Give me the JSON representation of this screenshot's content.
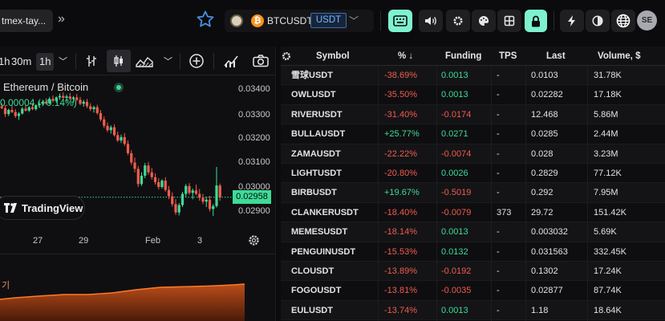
{
  "topbar": {
    "workspace_label": "tmex-tay...",
    "expand_icon": "double-chevron-right",
    "favorite_icon": "star-outline",
    "pair": "BTCUSDT",
    "quote": "USDT",
    "buttons": [
      "keyboard-icon",
      "volume-icon",
      "gear-icon",
      "palette-icon",
      "grid-icon",
      "lock-icon",
      "lightning-icon",
      "contrast-icon",
      "globe-icon"
    ],
    "avatar_initials": "SE",
    "accent_color": "#7ef2cf"
  },
  "chart": {
    "intervals": [
      "1h",
      "30m",
      "1h"
    ],
    "selected_interval": "1h",
    "symbol_title": "Ethereum / Bitcoin",
    "change_text": "0.00004 (+0.14%)",
    "price_ticks": [
      "0.03400",
      "0.03300",
      "0.03200",
      "0.03100",
      "0.03000",
      "0.02900"
    ],
    "last_price": "0.02958",
    "x_ticks": [
      "27",
      "29",
      "Feb",
      "3"
    ],
    "branding": "TradingView",
    "indicator_label": "기",
    "up_color": "#3ddc97",
    "down_color": "#f05c4e",
    "candles": [
      [
        0.03346,
        0.03354,
        0.03326,
        0.0333
      ],
      [
        0.0333,
        0.03342,
        0.03318,
        0.03322
      ],
      [
        0.03322,
        0.03334,
        0.03286,
        0.03298
      ],
      [
        0.03298,
        0.0332,
        0.0329,
        0.03315
      ],
      [
        0.03315,
        0.03332,
        0.03302,
        0.03306
      ],
      [
        0.03306,
        0.03318,
        0.03282,
        0.0329
      ],
      [
        0.0329,
        0.03306,
        0.03274,
        0.033
      ],
      [
        0.033,
        0.03326,
        0.03296,
        0.0332
      ],
      [
        0.0332,
        0.03336,
        0.03308,
        0.03312
      ],
      [
        0.03312,
        0.0333,
        0.03306,
        0.03326
      ],
      [
        0.03326,
        0.03342,
        0.03314,
        0.03318
      ],
      [
        0.03318,
        0.03338,
        0.03312,
        0.03334
      ],
      [
        0.03334,
        0.0335,
        0.03324,
        0.0334
      ],
      [
        0.0334,
        0.03356,
        0.0333,
        0.03348
      ],
      [
        0.03348,
        0.03362,
        0.03336,
        0.03342
      ],
      [
        0.03342,
        0.03368,
        0.03338,
        0.0336
      ],
      [
        0.0336,
        0.03374,
        0.03346,
        0.03352
      ],
      [
        0.03352,
        0.0337,
        0.03344,
        0.03366
      ],
      [
        0.03366,
        0.03382,
        0.03356,
        0.03372
      ],
      [
        0.03372,
        0.03386,
        0.03358,
        0.03364
      ],
      [
        0.03364,
        0.03378,
        0.0335,
        0.0337
      ],
      [
        0.0337,
        0.03384,
        0.03356,
        0.0336
      ],
      [
        0.0336,
        0.03372,
        0.03344,
        0.03366
      ],
      [
        0.03366,
        0.0338,
        0.0335,
        0.03356
      ],
      [
        0.03356,
        0.03368,
        0.03334,
        0.0334
      ],
      [
        0.0334,
        0.03356,
        0.03328,
        0.03348
      ],
      [
        0.03348,
        0.0336,
        0.03322,
        0.0333
      ],
      [
        0.0333,
        0.03342,
        0.0331,
        0.03318
      ],
      [
        0.03318,
        0.03332,
        0.03304,
        0.03326
      ],
      [
        0.03326,
        0.03336,
        0.03296,
        0.03302
      ],
      [
        0.03302,
        0.03314,
        0.03268,
        0.03276
      ],
      [
        0.03276,
        0.03288,
        0.0324,
        0.0325
      ],
      [
        0.0325,
        0.03264,
        0.03224,
        0.03232
      ],
      [
        0.03232,
        0.03252,
        0.03218,
        0.03244
      ],
      [
        0.03244,
        0.03256,
        0.03206,
        0.03212
      ],
      [
        0.03212,
        0.03226,
        0.03184,
        0.0319
      ],
      [
        0.0319,
        0.03214,
        0.0318,
        0.03204
      ],
      [
        0.03204,
        0.0322,
        0.03168,
        0.03176
      ],
      [
        0.03176,
        0.0319,
        0.0313,
        0.03138
      ],
      [
        0.03138,
        0.0315,
        0.0309,
        0.031
      ],
      [
        0.031,
        0.0312,
        0.0306,
        0.03074
      ],
      [
        0.03074,
        0.03086,
        0.03,
        0.03012
      ],
      [
        0.03012,
        0.0306,
        0.03004,
        0.03046
      ],
      [
        0.03046,
        0.03098,
        0.03036,
        0.03088
      ],
      [
        0.03088,
        0.03102,
        0.0305,
        0.0306
      ],
      [
        0.0306,
        0.03078,
        0.0303,
        0.0304
      ],
      [
        0.0304,
        0.03056,
        0.0301,
        0.0302
      ],
      [
        0.0302,
        0.03036,
        0.0299,
        0.03
      ],
      [
        0.03,
        0.03032,
        0.02994,
        0.03026
      ],
      [
        0.03026,
        0.0304,
        0.0298,
        0.02988
      ],
      [
        0.02988,
        0.03004,
        0.0295,
        0.02962
      ],
      [
        0.02962,
        0.02978,
        0.0292,
        0.0293
      ],
      [
        0.0293,
        0.0295,
        0.02886,
        0.02896
      ],
      [
        0.02896,
        0.02934,
        0.02884,
        0.02926
      ],
      [
        0.02926,
        0.0298,
        0.02918,
        0.02972
      ],
      [
        0.02972,
        0.03012,
        0.0296,
        0.03004
      ],
      [
        0.03004,
        0.03016,
        0.02968,
        0.02976
      ],
      [
        0.02976,
        0.02994,
        0.0295,
        0.02986
      ],
      [
        0.02986,
        0.0301,
        0.02966,
        0.02972
      ],
      [
        0.02972,
        0.02992,
        0.02944,
        0.02956
      ],
      [
        0.02956,
        0.02972,
        0.0293,
        0.0294
      ],
      [
        0.0294,
        0.0296,
        0.02918,
        0.02948
      ],
      [
        0.02948,
        0.02964,
        0.029,
        0.0291
      ],
      [
        0.0291,
        0.0293,
        0.02882,
        0.02922
      ],
      [
        0.02922,
        0.03082,
        0.02916,
        0.03006
      ],
      [
        0.03006,
        0.03014,
        0.02944,
        0.02958
      ]
    ]
  },
  "table": {
    "headers": {
      "symbol": "Symbol",
      "change": "% ↓",
      "funding": "Funding",
      "tps": "TPS",
      "last": "Last",
      "volume": "Volume, $"
    },
    "rows": [
      {
        "symbol": "雪球USDT",
        "change": "-38.69%",
        "funding": "0.0013",
        "tps": "-",
        "last": "0.0103",
        "volume": "31.78K"
      },
      {
        "symbol": "OWLUSDT",
        "change": "-35.50%",
        "funding": "0.0013",
        "tps": "-",
        "last": "0.02282",
        "volume": "17.18K"
      },
      {
        "symbol": "RIVERUSDT",
        "change": "-31.40%",
        "funding": "-0.0174",
        "tps": "-",
        "last": "12.468",
        "volume": "5.86M"
      },
      {
        "symbol": "BULLAUSDT",
        "change": "+25.77%",
        "funding": "0.0271",
        "tps": "-",
        "last": "0.0285",
        "volume": "2.44M"
      },
      {
        "symbol": "ZAMAUSDT",
        "change": "-22.22%",
        "funding": "-0.0074",
        "tps": "-",
        "last": "0.028",
        "volume": "3.23M"
      },
      {
        "symbol": "LIGHTUSDT",
        "change": "-20.80%",
        "funding": "0.0026",
        "tps": "-",
        "last": "0.2829",
        "volume": "77.12K"
      },
      {
        "symbol": "BIRBUSDT",
        "change": "+19.67%",
        "funding": "-0.5019",
        "tps": "-",
        "last": "0.292",
        "volume": "7.95M"
      },
      {
        "symbol": "CLANKERUSDT",
        "change": "-18.40%",
        "funding": "-0.0079",
        "tps": "373",
        "last": "29.72",
        "volume": "151.42K"
      },
      {
        "symbol": "MEMESUSDT",
        "change": "-18.14%",
        "funding": "0.0013",
        "tps": "-",
        "last": "0.003032",
        "volume": "5.69K"
      },
      {
        "symbol": "PENGUINUSDT",
        "change": "-15.53%",
        "funding": "0.0132",
        "tps": "-",
        "last": "0.031563",
        "volume": "332.45K"
      },
      {
        "symbol": "CLOUSDT",
        "change": "-13.89%",
        "funding": "-0.0192",
        "tps": "-",
        "last": "0.1302",
        "volume": "17.24K"
      },
      {
        "symbol": "FOGOUSDT",
        "change": "-13.81%",
        "funding": "-0.0035",
        "tps": "-",
        "last": "0.02877",
        "volume": "87.74K"
      },
      {
        "symbol": "EULUSDT",
        "change": "-13.74%",
        "funding": "0.0013",
        "tps": "-",
        "last": "1.18",
        "volume": "18.64K"
      }
    ]
  }
}
